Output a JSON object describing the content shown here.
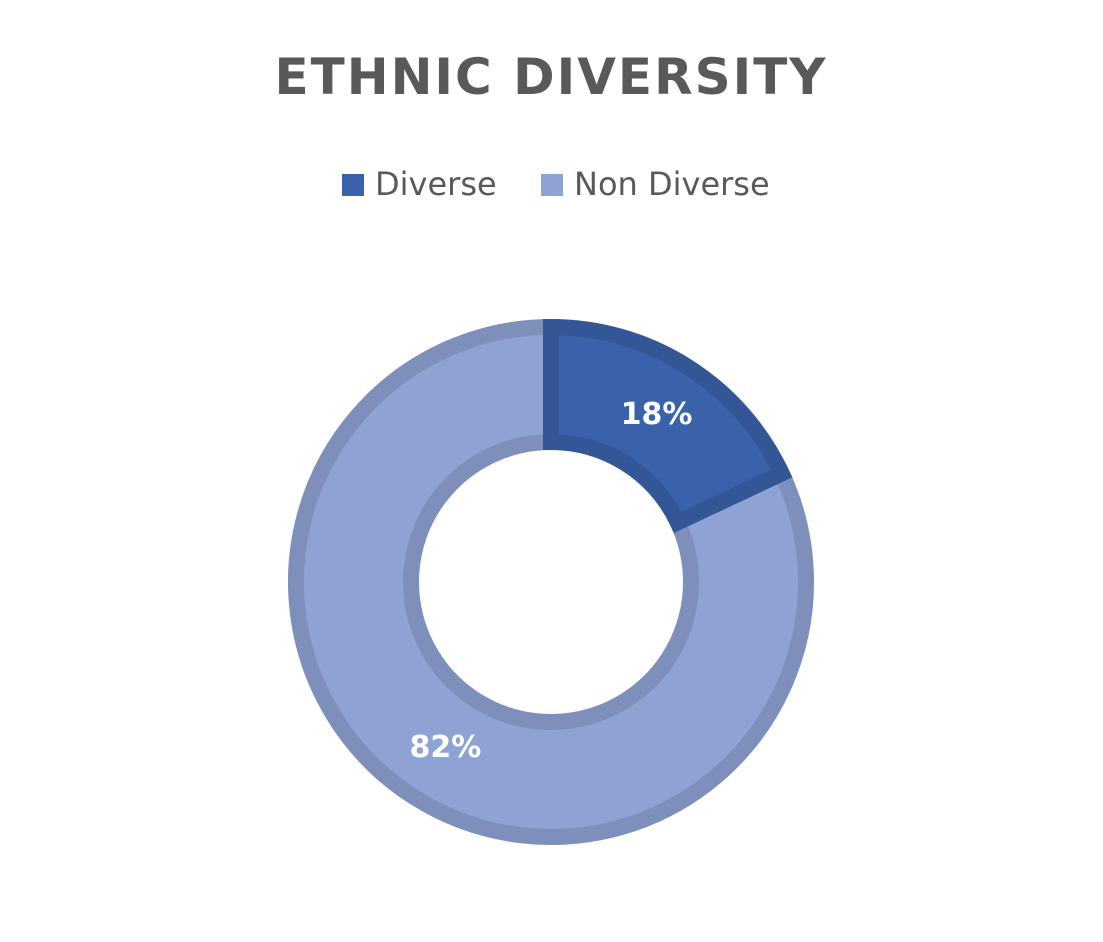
{
  "chart_data": {
    "type": "doughnut",
    "title": "ETHNIC DIVERSITY",
    "categories": [
      "Diverse",
      "Non Diverse"
    ],
    "values": [
      18,
      82
    ],
    "value_labels": [
      "18%",
      "82%"
    ],
    "colors": [
      "#3a62aa",
      "#8fa2d4"
    ]
  }
}
